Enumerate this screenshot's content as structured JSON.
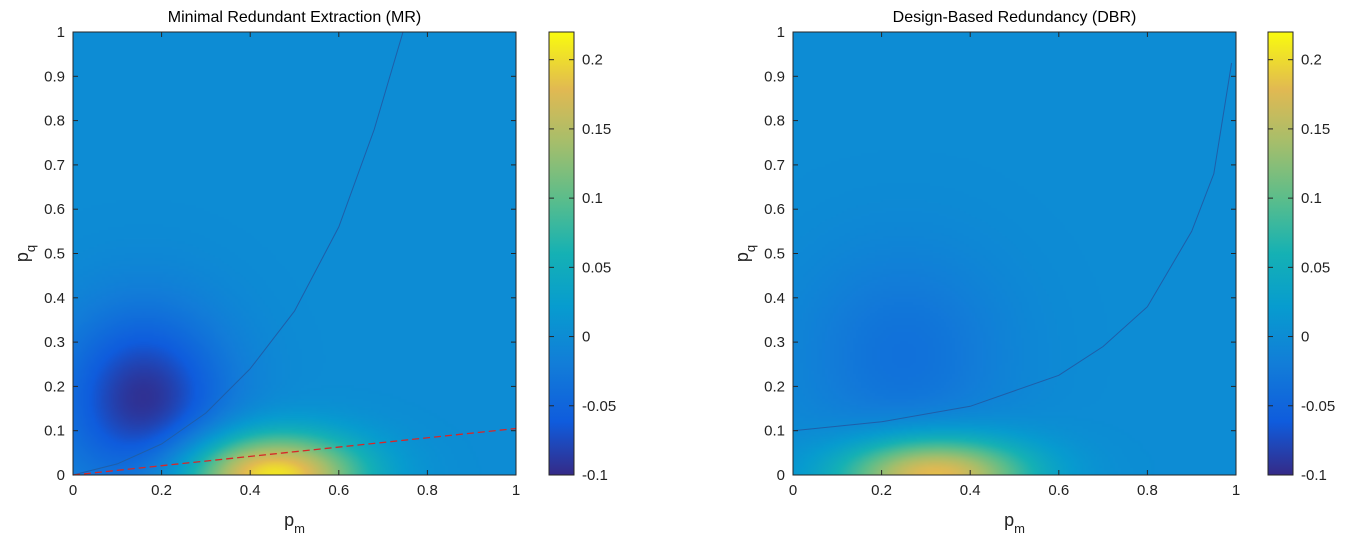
{
  "chart_data": [
    {
      "type": "heatmap",
      "title": "Minimal Redundant Extraction (MR)",
      "xlabel": "p",
      "xlabel_sub": "m",
      "ylabel": "p",
      "ylabel_sub": "q",
      "xlim": [
        0,
        1
      ],
      "ylim": [
        0,
        1
      ],
      "x_ticks": [
        "0",
        "0.2",
        "0.4",
        "0.6",
        "0.8",
        "1"
      ],
      "y_ticks": [
        "0",
        "0.1",
        "0.2",
        "0.3",
        "0.4",
        "0.5",
        "0.6",
        "0.7",
        "0.8",
        "0.9",
        "1"
      ],
      "colormap": "parula",
      "clim": [
        -0.1,
        0.22
      ],
      "colorbar_ticks": [
        "-0.1",
        "-0.05",
        "0",
        "0.05",
        "0.1",
        "0.15",
        "0.2"
      ],
      "features": {
        "minimum": {
          "x": 0.16,
          "y": 0.17,
          "value": -0.095
        },
        "maximum": {
          "x": 0.45,
          "y": 0.0,
          "value": 0.21
        }
      },
      "zero_contour": [
        [
          0.0,
          0.0
        ],
        [
          0.1,
          0.025
        ],
        [
          0.2,
          0.07
        ],
        [
          0.3,
          0.14
        ],
        [
          0.4,
          0.24
        ],
        [
          0.5,
          0.37
        ],
        [
          0.6,
          0.56
        ],
        [
          0.68,
          0.78
        ],
        [
          0.745,
          1.0
        ]
      ],
      "dashed_line": {
        "color": "#d62728",
        "points": [
          [
            0.0,
            0.0
          ],
          [
            1.0,
            0.105
          ]
        ]
      }
    },
    {
      "type": "heatmap",
      "title": "Design-Based Redundancy (DBR)",
      "xlabel": "p",
      "xlabel_sub": "m",
      "ylabel": "p",
      "ylabel_sub": "q",
      "xlim": [
        0,
        1
      ],
      "ylim": [
        0,
        1
      ],
      "x_ticks": [
        "0",
        "0.2",
        "0.4",
        "0.6",
        "0.8",
        "1"
      ],
      "y_ticks": [
        "0",
        "0.1",
        "0.2",
        "0.3",
        "0.4",
        "0.5",
        "0.6",
        "0.7",
        "0.8",
        "0.9",
        "1"
      ],
      "colormap": "parula",
      "clim": [
        -0.1,
        0.22
      ],
      "colorbar_ticks": [
        "-0.1",
        "-0.05",
        "0",
        "0.05",
        "0.1",
        "0.15",
        "0.2"
      ],
      "features": {
        "minimum": {
          "x": 0.25,
          "y": 0.27,
          "value": -0.035
        },
        "maximum": {
          "x": 0.32,
          "y": 0.0,
          "value": 0.19
        }
      },
      "zero_contour": [
        [
          0.0,
          0.1
        ],
        [
          0.2,
          0.12
        ],
        [
          0.4,
          0.155
        ],
        [
          0.6,
          0.225
        ],
        [
          0.7,
          0.29
        ],
        [
          0.8,
          0.38
        ],
        [
          0.9,
          0.55
        ],
        [
          0.95,
          0.68
        ],
        [
          0.99,
          0.93
        ]
      ]
    }
  ]
}
